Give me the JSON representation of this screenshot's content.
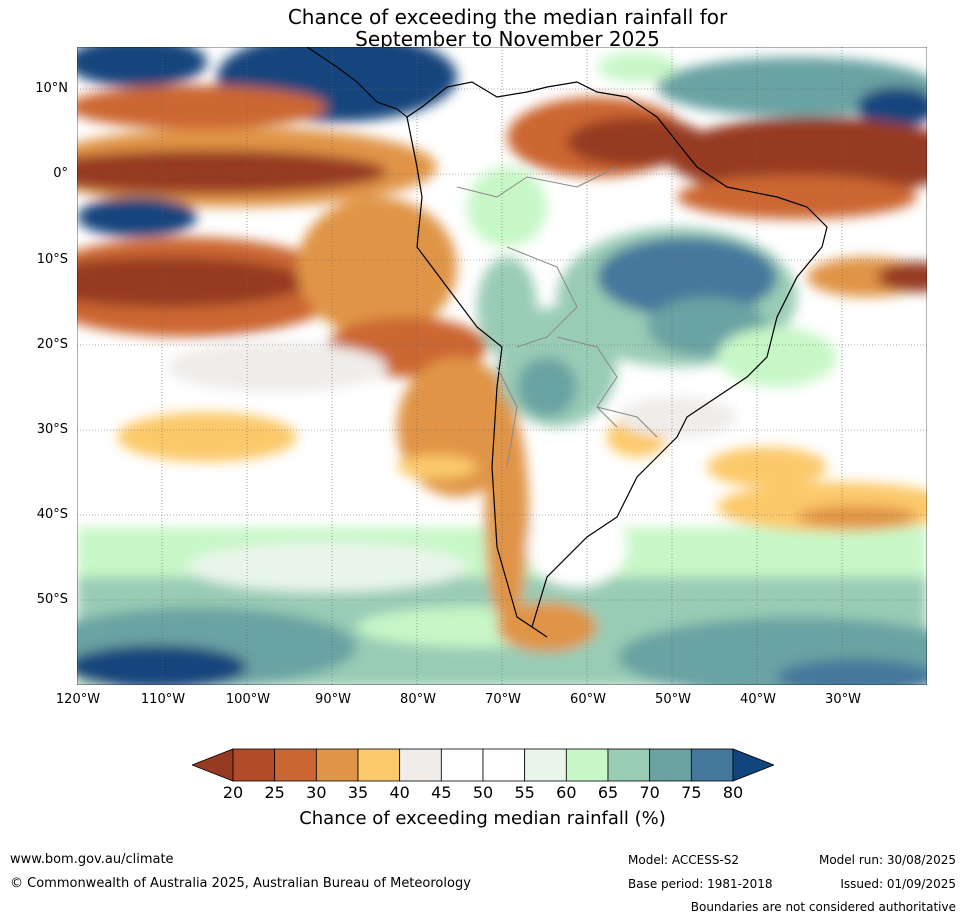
{
  "title": [
    "Chance of exceeding the median rainfall for",
    "September to November 2025"
  ],
  "lat_labels": [
    "10°N",
    "0°",
    "10°S",
    "20°S",
    "30°S",
    "40°S",
    "50°S"
  ],
  "lon_labels": [
    "120°W",
    "110°W",
    "100°W",
    "90°W",
    "80°W",
    "70°W",
    "60°W",
    "50°W",
    "40°W",
    "30°W"
  ],
  "colorbar": {
    "ticks": [
      "20",
      "25",
      "30",
      "35",
      "40",
      "45",
      "50",
      "55",
      "60",
      "65",
      "70",
      "75",
      "80"
    ],
    "colors": [
      "#963a22",
      "#b34a28",
      "#cc6633",
      "#e09447",
      "#fcc96b",
      "#efecea",
      "#ffffff",
      "#ffffff",
      "#e9f5ea",
      "#c7f7c7",
      "#99ccb5",
      "#6ba3a3",
      "#44789c",
      "#12447d"
    ],
    "label": "Chance of exceeding median rainfall (%)"
  },
  "footer": {
    "url": "www.bom.gov.au/climate",
    "copyright": "© Commonwealth of Australia 2025, Australian Bureau of Meteorology",
    "model": "Model: ACCESS-S2",
    "base_period": "Base period: 1981-2018",
    "model_run": "Model run: 30/08/2025",
    "issued": "Issued: 01/09/2025",
    "disclaimer": "Boundaries are not considered authoritative"
  }
}
